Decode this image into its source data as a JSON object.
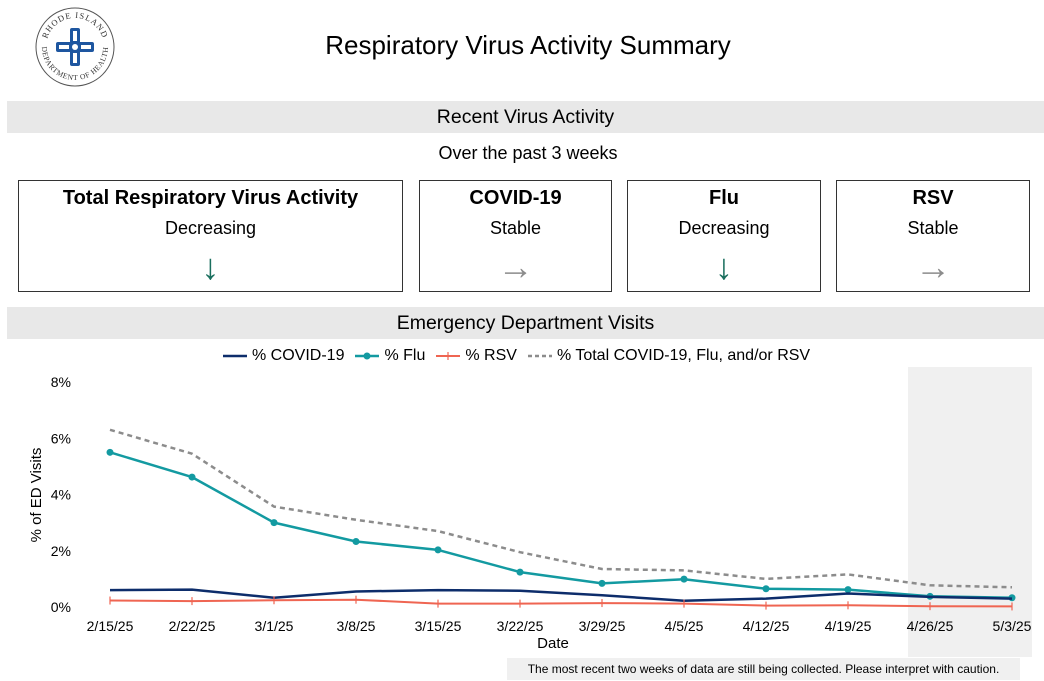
{
  "header": {
    "logo_text_top": "RHODE ISLAND",
    "logo_text_bottom": "DEPARTMENT OF HEALTH",
    "title": "Respiratory Virus Activity Summary"
  },
  "recent": {
    "band_title": "Recent Virus Activity",
    "subtitle": "Over the past 3 weeks",
    "cards": [
      {
        "title": "Total Respiratory Virus Activity",
        "status": "Decreasing",
        "arrow": "↓",
        "trend": "down"
      },
      {
        "title": "COVID-19",
        "status": "Stable",
        "arrow": "→",
        "trend": "flat"
      },
      {
        "title": "Flu",
        "status": "Decreasing",
        "arrow": "↓",
        "trend": "down"
      },
      {
        "title": "RSV",
        "status": "Stable",
        "arrow": "→",
        "trend": "flat"
      }
    ]
  },
  "ed": {
    "band_title": "Emergency Department Visits",
    "caution_note": "The most recent two weeks of data are still being collected. Please interpret with caution."
  },
  "colors": {
    "covid": "#0d2d6b",
    "flu": "#139aa1",
    "rsv": "#ef6552",
    "total": "#8c8c8c",
    "shade": "#f0f0f0"
  },
  "chart_data": {
    "type": "line",
    "title": "Emergency Department Visits",
    "xlabel": "Date",
    "ylabel": "% of ED Visits",
    "ylim": [
      0,
      8
    ],
    "yticks": [
      0,
      2,
      4,
      6,
      8
    ],
    "ytick_labels": [
      "0%",
      "2%",
      "4%",
      "6%",
      "8%"
    ],
    "grid": false,
    "legend_position": "top",
    "categories": [
      "2/15/25",
      "2/22/25",
      "3/1/25",
      "3/8/25",
      "3/15/25",
      "3/22/25",
      "3/29/25",
      "4/5/25",
      "4/12/25",
      "4/19/25",
      "4/26/25",
      "5/3/25"
    ],
    "shaded_categories": [
      "4/26/25",
      "5/3/25"
    ],
    "series": [
      {
        "name": "% COVID-19",
        "key": "covid",
        "style": "solid",
        "marker": "none",
        "values": [
          0.6,
          0.62,
          0.33,
          0.55,
          0.6,
          0.58,
          0.42,
          0.22,
          0.3,
          0.48,
          0.36,
          0.3
        ]
      },
      {
        "name": "% Flu",
        "key": "flu",
        "style": "solid",
        "marker": "dot",
        "values": [
          5.5,
          4.62,
          3.0,
          2.33,
          2.03,
          1.24,
          0.84,
          0.99,
          0.65,
          0.62,
          0.38,
          0.33
        ]
      },
      {
        "name": "% RSV",
        "key": "rsv",
        "style": "solid",
        "marker": "plus",
        "values": [
          0.23,
          0.21,
          0.24,
          0.26,
          0.12,
          0.12,
          0.14,
          0.12,
          0.05,
          0.06,
          0.03,
          0.02
        ]
      },
      {
        "name": "% Total COVID-19, Flu, and/or RSV",
        "key": "total",
        "style": "dashed",
        "marker": "none",
        "values": [
          6.3,
          5.45,
          3.57,
          3.1,
          2.7,
          1.95,
          1.35,
          1.3,
          1.0,
          1.16,
          0.77,
          0.7
        ]
      }
    ]
  }
}
